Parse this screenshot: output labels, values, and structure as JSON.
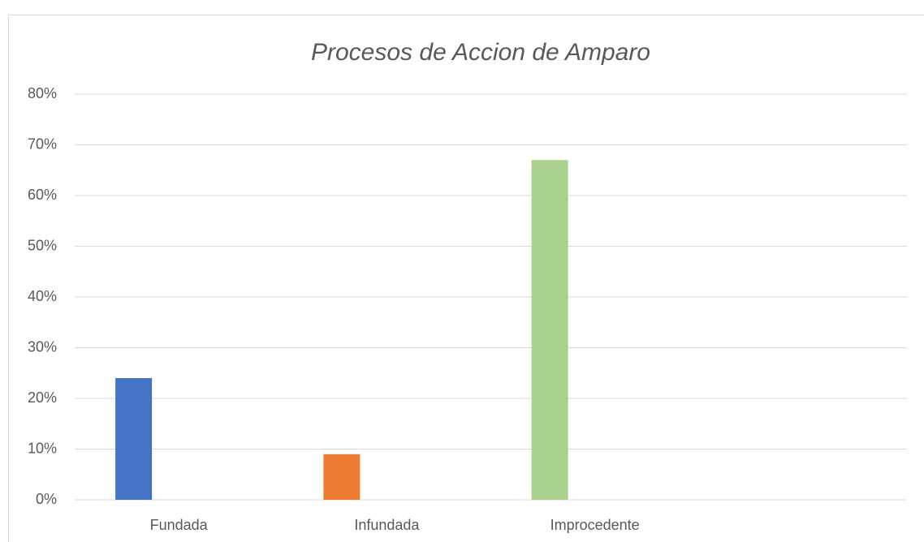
{
  "chart_data": {
    "type": "bar",
    "title": "Procesos de Accion de Amparo",
    "categories": [
      "Fundada",
      "Infundada",
      "Improcedente",
      null
    ],
    "values": [
      24,
      9,
      67,
      null
    ],
    "colors": [
      "#4472c4",
      "#ed7d31",
      "#a9d18e",
      null
    ],
    "ylim": [
      0,
      80
    ],
    "yticks": [
      {
        "value": 0,
        "label": "0%"
      },
      {
        "value": 10,
        "label": "10%"
      },
      {
        "value": 20,
        "label": "20%"
      },
      {
        "value": 30,
        "label": "30%"
      },
      {
        "value": 40,
        "label": "40%"
      },
      {
        "value": 50,
        "label": "50%"
      },
      {
        "value": 60,
        "label": "60%"
      },
      {
        "value": 70,
        "label": "70%"
      },
      {
        "value": 80,
        "label": "80%"
      }
    ],
    "grid": true
  }
}
